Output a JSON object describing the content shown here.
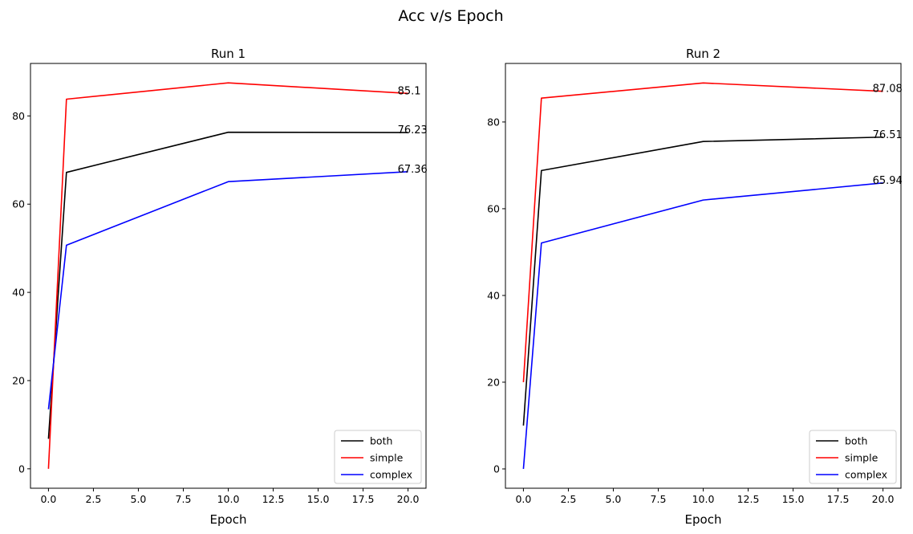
{
  "figure": {
    "suptitle": "Acc v/s Epoch"
  },
  "chart_data": [
    {
      "type": "line",
      "title": "Run 1",
      "xlabel": "Epoch",
      "ylabel": "",
      "x": [
        0,
        1,
        10,
        20
      ],
      "xlim": [
        -1,
        21
      ],
      "ylim": [
        -4.4,
        91.9
      ],
      "xticks": [
        0,
        2.5,
        5,
        7.5,
        10,
        12.5,
        15,
        17.5,
        20
      ],
      "xtick_labels": [
        "0.0",
        "2.5",
        "5.0",
        "7.5",
        "10.0",
        "12.5",
        "15.0",
        "17.5",
        "20.0"
      ],
      "yticks": [
        0,
        20,
        40,
        60,
        80
      ],
      "ytick_labels": [
        "0",
        "20",
        "40",
        "60",
        "80"
      ],
      "legend": "lower-right",
      "series": [
        {
          "name": "both",
          "color": "#000000",
          "values": [
            6.8,
            67.2,
            76.3,
            76.23
          ],
          "end_label": "76.23"
        },
        {
          "name": "simple",
          "color": "#ff0000",
          "values": [
            0.0,
            83.8,
            87.5,
            85.1
          ],
          "end_label": "85.1"
        },
        {
          "name": "complex",
          "color": "#0000ff",
          "values": [
            13.5,
            50.7,
            65.1,
            67.36
          ],
          "end_label": "67.36"
        }
      ]
    },
    {
      "type": "line",
      "title": "Run 2",
      "xlabel": "Epoch",
      "ylabel": "",
      "x": [
        0,
        1,
        10,
        20
      ],
      "xlim": [
        -1,
        21
      ],
      "ylim": [
        -4.45,
        93.5
      ],
      "xticks": [
        0,
        2.5,
        5,
        7.5,
        10,
        12.5,
        15,
        17.5,
        20
      ],
      "xtick_labels": [
        "0.0",
        "2.5",
        "5.0",
        "7.5",
        "10.0",
        "12.5",
        "15.0",
        "17.5",
        "20.0"
      ],
      "yticks": [
        0,
        20,
        40,
        60,
        80
      ],
      "ytick_labels": [
        "0",
        "20",
        "40",
        "60",
        "80"
      ],
      "legend": "lower-right",
      "series": [
        {
          "name": "both",
          "color": "#000000",
          "values": [
            10.0,
            68.8,
            75.5,
            76.51
          ],
          "end_label": "76.51"
        },
        {
          "name": "simple",
          "color": "#ff0000",
          "values": [
            20.0,
            85.5,
            89.0,
            87.08
          ],
          "end_label": "87.08"
        },
        {
          "name": "complex",
          "color": "#0000ff",
          "values": [
            0.0,
            52.1,
            62.0,
            65.94
          ],
          "end_label": "65.94"
        }
      ]
    }
  ]
}
